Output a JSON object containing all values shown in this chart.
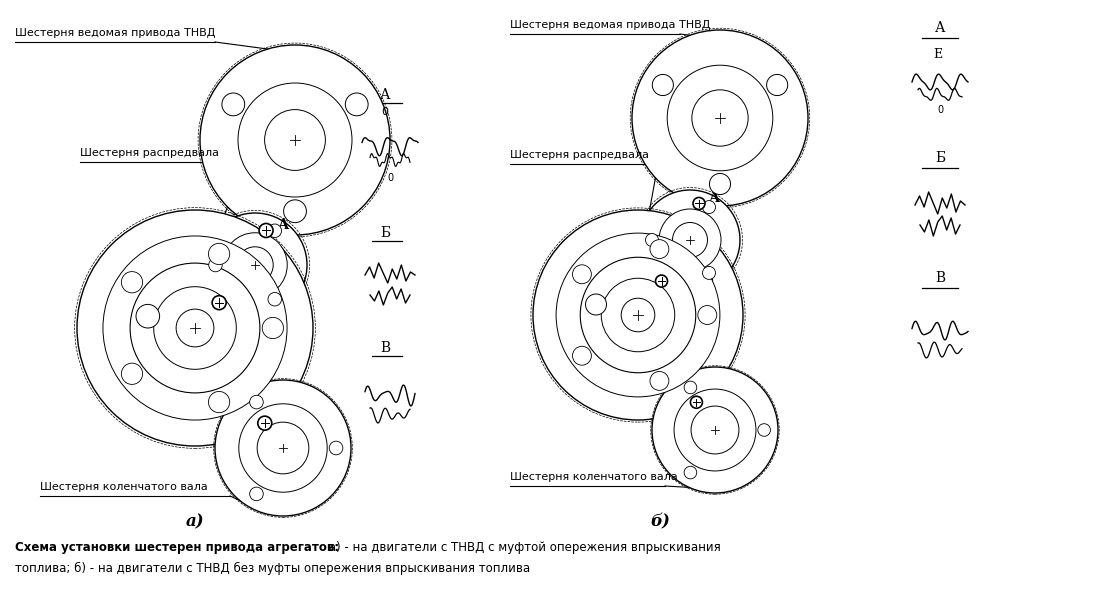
{
  "bg_color": "#ffffff",
  "bold_caption": "Схема установки шестерен привода агрегатов:",
  "normal_caption_1": " а) - на двигатели с ТНВД с муфтой опережения впрыскивания",
  "caption_line2": "топлива; б) - на двигатели с ТНВД без муфты опережения впрыскивания топлива",
  "label_tnvd_a": "Шестерня ведомая привода ТНВД",
  "label_rasp_a": "Шестерня распредвала",
  "label_kolen_a": "Шестерня коленчатого вала",
  "label_tnvd_b": "Шестерня ведомая привода ТНВД",
  "label_rasp_b": "Шестерня распредвала",
  "label_kolen_b": "Шестерня коленчатого вала",
  "caption_a": "а)",
  "caption_b": "б)"
}
